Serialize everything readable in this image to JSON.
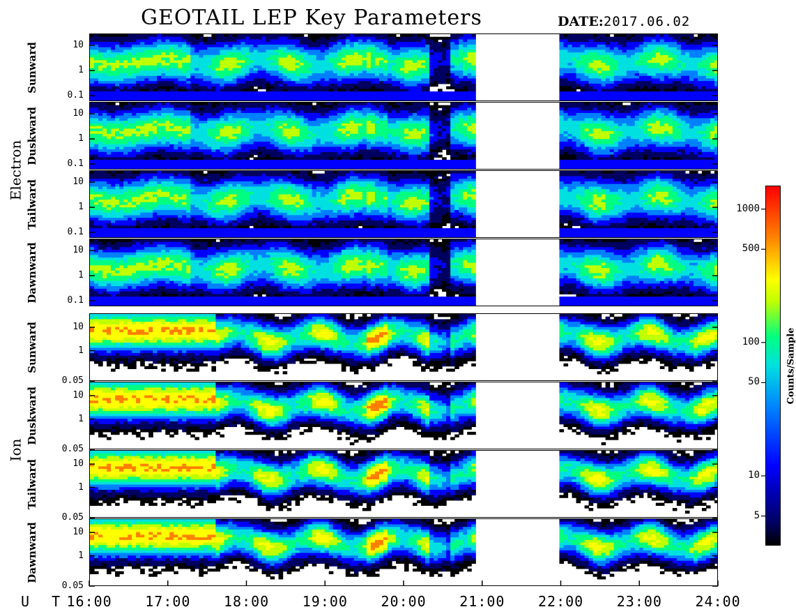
{
  "title": "GEOTAIL LEP Key Parameters",
  "date_label": "DATE:",
  "date_value": "2017.06.02",
  "ut_label": "U T",
  "colorbar": {
    "title": "Counts/Sample",
    "scale": "log",
    "range": [
      3,
      1500
    ],
    "ticks": [
      "5",
      "10",
      "50",
      "100",
      "500",
      "1000"
    ],
    "tick_values": [
      5,
      10,
      50,
      100,
      500,
      1000
    ],
    "colors": [
      "#000000",
      "#000060",
      "#0000ff",
      "#0080ff",
      "#00e0e0",
      "#00ff80",
      "#c0ff00",
      "#ffff00",
      "#ff8000",
      "#ff0000"
    ]
  },
  "groups": [
    {
      "label": "Electron",
      "panels": [
        0,
        1,
        2,
        3
      ]
    },
    {
      "label": "Ion",
      "panels": [
        4,
        5,
        6,
        7
      ]
    }
  ],
  "chart_data": {
    "type": "heatmap",
    "title": "GEOTAIL LEP Key Parameters",
    "x_axis": {
      "label": "U T",
      "range": [
        "16:00",
        "24:00"
      ],
      "ticks": [
        "16:00",
        "17:00",
        "18:00",
        "19:00",
        "20:00",
        "21:00",
        "22:00",
        "23:00",
        "24:00"
      ]
    },
    "y_axis": {
      "scale": "log"
    },
    "data_gaps": [
      [
        "20:56",
        "22:00"
      ]
    ],
    "panels": [
      {
        "species": "Electron",
        "direction": "Sunward",
        "ylim": [
          0.06,
          30
        ],
        "yticks": [
          "10",
          "1",
          "0.1"
        ],
        "ytick_values": [
          10,
          1,
          0.1
        ]
      },
      {
        "species": "Electron",
        "direction": "Duskward",
        "ylim": [
          0.06,
          30
        ],
        "yticks": [
          "10",
          "1",
          "0.1"
        ],
        "ytick_values": [
          10,
          1,
          0.1
        ]
      },
      {
        "species": "Electron",
        "direction": "Tailward",
        "ylim": [
          0.06,
          30
        ],
        "yticks": [
          "10",
          "1",
          "0.1"
        ],
        "ytick_values": [
          10,
          1,
          0.1
        ]
      },
      {
        "species": "Electron",
        "direction": "Dawnward",
        "ylim": [
          0.06,
          30
        ],
        "yticks": [
          "10",
          "1",
          "0.1"
        ],
        "ytick_values": [
          10,
          1,
          0.1
        ]
      },
      {
        "species": "Ion",
        "direction": "Sunward",
        "ylim": [
          0.05,
          40
        ],
        "yticks": [
          "10",
          "1",
          "0.05"
        ],
        "ytick_values": [
          10,
          1,
          0.05
        ]
      },
      {
        "species": "Ion",
        "direction": "Duskward",
        "ylim": [
          0.05,
          40
        ],
        "yticks": [
          "10",
          "1",
          "0.05"
        ],
        "ytick_values": [
          10,
          1,
          0.05
        ]
      },
      {
        "species": "Ion",
        "direction": "Tailward",
        "ylim": [
          0.05,
          40
        ],
        "yticks": [
          "10",
          "1",
          "0.05"
        ],
        "ytick_values": [
          10,
          1,
          0.05
        ]
      },
      {
        "species": "Ion",
        "direction": "Dawnward",
        "ylim": [
          0.05,
          40
        ],
        "yticks": [
          "10",
          "1",
          "0.05"
        ],
        "ytick_values": [
          10,
          1,
          0.05
        ]
      }
    ]
  }
}
